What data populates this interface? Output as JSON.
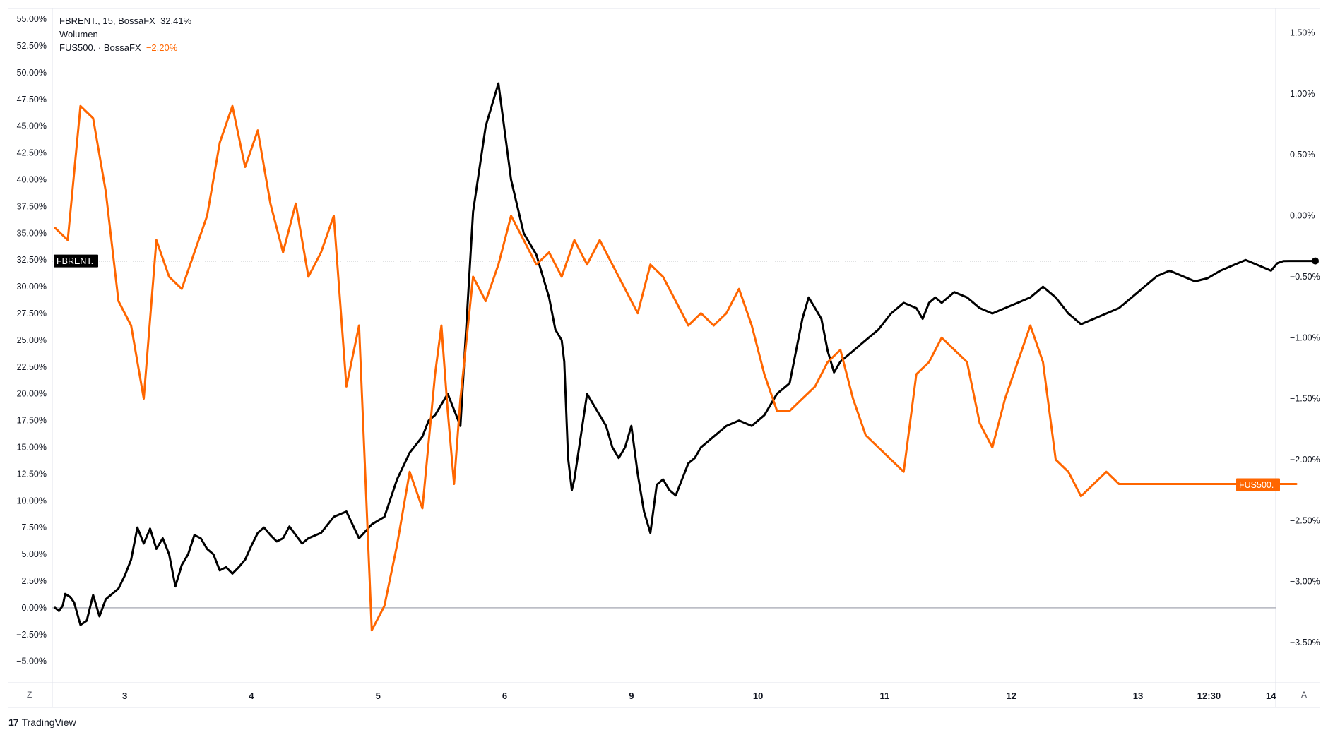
{
  "legend": {
    "primary_label": "FBRENT., 15, BossaFX",
    "primary_value": "32.41%",
    "volume_label": "Wolumen",
    "secondary_label": "FUS500. · BossaFX",
    "secondary_value": "−2.20%"
  },
  "corner": {
    "bottom_left": "Z",
    "bottom_right": "A"
  },
  "brand": {
    "logo": "17",
    "name": "TradingView"
  },
  "colors": {
    "primary": "#000000",
    "secondary": "#ff6600",
    "background": "#ffffff",
    "grid": "#e0e3eb"
  },
  "chart_data": {
    "type": "line",
    "x_ticks": [
      "3",
      "4",
      "5",
      "6",
      "9",
      "10",
      "11",
      "12",
      "13",
      "12:30",
      "14"
    ],
    "left_axis": {
      "ticks": [
        "55.00%",
        "52.50%",
        "50.00%",
        "47.50%",
        "45.00%",
        "42.50%",
        "40.00%",
        "37.50%",
        "35.00%",
        "32.50%",
        "30.00%",
        "27.50%",
        "25.00%",
        "22.50%",
        "20.00%",
        "17.50%",
        "15.00%",
        "12.50%",
        "10.00%",
        "7.50%",
        "5.00%",
        "2.50%",
        "0.00%",
        "−2.50%",
        "−5.00%"
      ],
      "range": [
        -7.0,
        56.0
      ]
    },
    "right_axis": {
      "ticks": [
        "1.50%",
        "1.00%",
        "0.50%",
        "0.00%",
        "−0.50%",
        "−1.00%",
        "−1.50%",
        "−2.00%",
        "−2.50%",
        "−3.00%",
        "−3.50%"
      ],
      "range": [
        -3.83,
        1.7
      ]
    },
    "series": [
      {
        "name": "FBRENT.",
        "axis": "left",
        "last_value_label": "FBRENT.",
        "last_value": 32.41,
        "x": [
          0,
          0.03,
          0.06,
          0.08,
          0.12,
          0.15,
          0.2,
          0.25,
          0.3,
          0.35,
          0.4,
          0.45,
          0.5,
          0.55,
          0.6,
          0.65,
          0.7,
          0.75,
          0.8,
          0.85,
          0.9,
          0.95,
          1.0,
          1.05,
          1.1,
          1.15,
          1.2,
          1.25,
          1.3,
          1.35,
          1.4,
          1.45,
          1.5,
          1.55,
          1.6,
          1.65,
          1.7,
          1.75,
          1.8,
          1.85,
          1.9,
          1.95,
          2.0,
          2.1,
          2.2,
          2.3,
          2.4,
          2.5,
          2.6,
          2.7,
          2.8,
          2.9,
          2.95,
          3.0,
          3.1,
          3.2,
          3.3,
          3.4,
          3.5,
          3.6,
          3.7,
          3.8,
          3.85,
          3.9,
          3.95,
          4.0,
          4.02,
          4.05,
          4.08,
          4.1,
          4.15,
          4.2,
          4.25,
          4.3,
          4.35,
          4.4,
          4.45,
          4.5,
          4.55,
          4.6,
          4.65,
          4.7,
          4.75,
          4.8,
          4.85,
          4.9,
          4.95,
          5.0,
          5.05,
          5.1,
          5.2,
          5.3,
          5.4,
          5.5,
          5.6,
          5.7,
          5.8,
          5.9,
          5.95,
          6.0,
          6.05,
          6.1,
          6.15,
          6.2,
          6.3,
          6.4,
          6.5,
          6.6,
          6.7,
          6.8,
          6.85,
          6.9,
          6.95,
          7.0,
          7.1,
          7.2,
          7.3,
          7.4,
          7.5,
          7.6,
          7.7,
          7.8,
          7.9,
          8.0,
          8.1,
          8.2,
          8.3,
          8.4,
          8.5,
          8.6,
          8.7,
          8.8,
          8.9,
          9.0,
          9.1,
          9.2,
          9.3,
          9.4,
          9.5,
          9.6,
          9.65,
          9.7,
          9.75,
          9.8,
          9.85,
          9.9,
          9.95
        ],
        "y": [
          0.0,
          -0.3,
          0.2,
          1.3,
          1.0,
          0.5,
          -1.6,
          -1.2,
          1.2,
          -0.8,
          0.8,
          1.3,
          1.8,
          3.0,
          4.5,
          7.5,
          6.0,
          7.4,
          5.5,
          6.5,
          5.0,
          2.0,
          4.0,
          5.0,
          6.8,
          6.5,
          5.5,
          5.0,
          3.5,
          3.8,
          3.2,
          3.8,
          4.5,
          5.8,
          7.0,
          7.5,
          6.8,
          6.2,
          6.5,
          7.6,
          6.8,
          6.0,
          6.5,
          7.0,
          8.5,
          9.0,
          6.5,
          7.8,
          8.5,
          12.0,
          14.5,
          16.0,
          17.5,
          18.0,
          20.0,
          17.0,
          37.0,
          45.0,
          49.0,
          40.0,
          35.0,
          33.0,
          31.0,
          29.0,
          26.0,
          25.0,
          23.0,
          14.0,
          11.0,
          12.0,
          16.0,
          20.0,
          19.0,
          18.0,
          17.0,
          15.0,
          14.0,
          15.0,
          17.0,
          12.5,
          9.0,
          7.0,
          11.5,
          12.0,
          11.0,
          10.5,
          12.0,
          13.5,
          14.0,
          15.0,
          16.0,
          17.0,
          17.5,
          17.0,
          18.0,
          20.0,
          21.0,
          27.0,
          29.0,
          28.0,
          27.0,
          24.0,
          22.0,
          23.0,
          24.0,
          25.0,
          26.0,
          27.5,
          28.5,
          28.0,
          27.0,
          28.5,
          29.0,
          28.5,
          29.5,
          29.0,
          28.0,
          27.5,
          28.0,
          28.5,
          29.0,
          30.0,
          29.0,
          27.5,
          26.5,
          27.0,
          27.5,
          28.0,
          29.0,
          30.0,
          31.0,
          31.5,
          31.0,
          30.5,
          30.8,
          31.5,
          32.0,
          32.5,
          32.0,
          31.5,
          32.2,
          32.4,
          32.41,
          32.41,
          32.41,
          32.41,
          32.41
        ]
      },
      {
        "name": "FUS500.",
        "axis": "right",
        "last_value_label": "FUS500.",
        "last_value": -2.2,
        "x": [
          0,
          0.1,
          0.2,
          0.3,
          0.4,
          0.5,
          0.6,
          0.7,
          0.8,
          0.9,
          1.0,
          1.1,
          1.2,
          1.3,
          1.4,
          1.5,
          1.6,
          1.7,
          1.8,
          1.9,
          2.0,
          2.1,
          2.2,
          2.3,
          2.4,
          2.5,
          2.6,
          2.7,
          2.8,
          2.9,
          3.0,
          3.05,
          3.1,
          3.15,
          3.2,
          3.3,
          3.4,
          3.5,
          3.6,
          3.7,
          3.8,
          3.9,
          4.0,
          4.1,
          4.2,
          4.3,
          4.4,
          4.5,
          4.6,
          4.7,
          4.8,
          4.9,
          5.0,
          5.1,
          5.2,
          5.3,
          5.4,
          5.5,
          5.6,
          5.7,
          5.8,
          5.9,
          6.0,
          6.1,
          6.2,
          6.3,
          6.4,
          6.5,
          6.6,
          6.7,
          6.8,
          6.9,
          7.0,
          7.1,
          7.2,
          7.3,
          7.4,
          7.5,
          7.6,
          7.7,
          7.8,
          7.9,
          8.0,
          8.1,
          8.2,
          8.3,
          8.4,
          8.5,
          8.6,
          8.7,
          8.8,
          8.9,
          9.0,
          9.1,
          9.2,
          9.3,
          9.4,
          9.5,
          9.6,
          9.7,
          9.75,
          9.8
        ],
        "y": [
          -0.1,
          -0.2,
          0.9,
          0.8,
          0.2,
          -0.7,
          -0.9,
          -1.5,
          -0.2,
          -0.5,
          -0.6,
          -0.3,
          0.0,
          0.6,
          0.9,
          0.4,
          0.7,
          0.1,
          -0.3,
          0.1,
          -0.5,
          -0.3,
          0.0,
          -1.4,
          -0.9,
          -3.4,
          -3.2,
          -2.7,
          -2.1,
          -2.4,
          -1.3,
          -0.9,
          -1.6,
          -2.2,
          -1.5,
          -0.5,
          -0.7,
          -0.4,
          0.0,
          -0.2,
          -0.4,
          -0.3,
          -0.5,
          -0.2,
          -0.4,
          -0.2,
          -0.4,
          -0.6,
          -0.8,
          -0.4,
          -0.5,
          -0.7,
          -0.9,
          -0.8,
          -0.9,
          -0.8,
          -0.6,
          -0.9,
          -1.3,
          -1.6,
          -1.6,
          -1.5,
          -1.4,
          -1.2,
          -1.1,
          -1.5,
          -1.8,
          -1.9,
          -2.0,
          -2.1,
          -1.3,
          -1.2,
          -1.0,
          -1.1,
          -1.2,
          -1.7,
          -1.9,
          -1.5,
          -1.2,
          -0.9,
          -1.2,
          -2.0,
          -2.1,
          -2.3,
          -2.2,
          -2.1,
          -2.2,
          -2.2,
          -2.2,
          -2.2,
          -2.2,
          -2.2,
          -2.2,
          -2.2,
          -2.2,
          -2.2,
          -2.2,
          -2.2,
          -2.2,
          -2.2,
          -2.2,
          -2.2
        ]
      }
    ],
    "baseline_left": 0.0,
    "reference_line_value": 32.41,
    "grid": false,
    "legend_position": "top-left"
  }
}
